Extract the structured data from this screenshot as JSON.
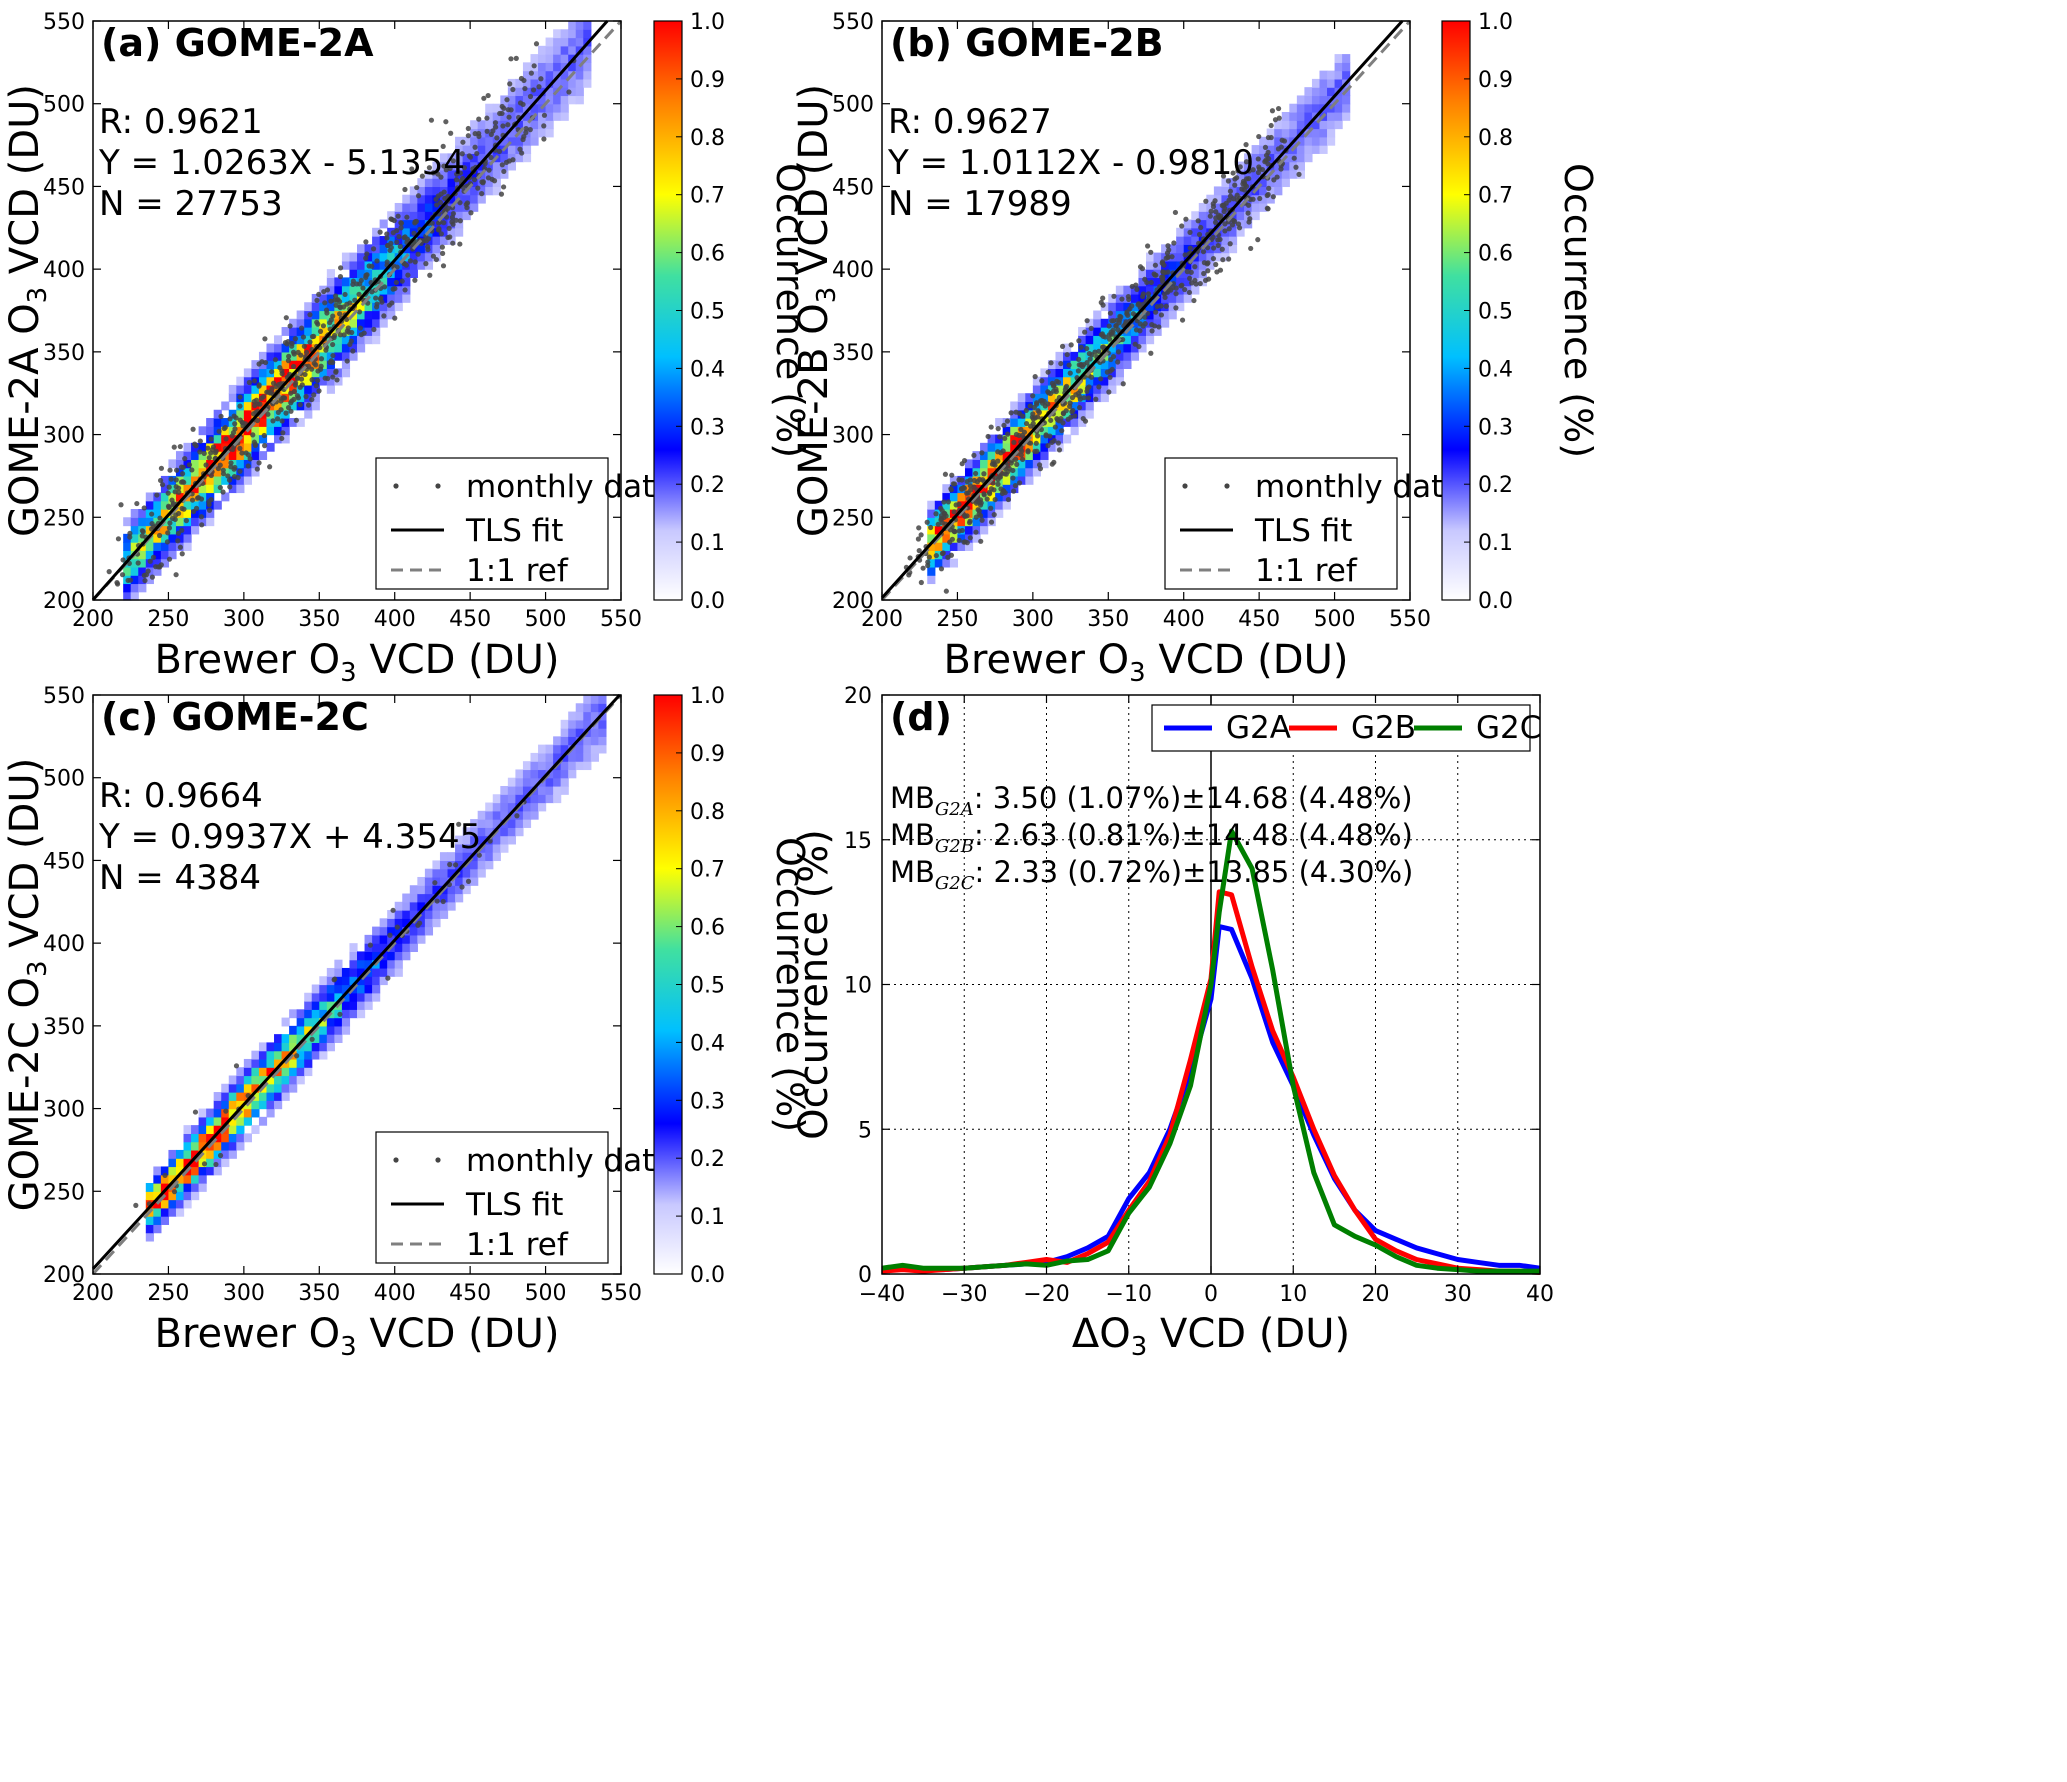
{
  "colors": {
    "scatter": "#444444",
    "tls": "#000000",
    "ref": "#7f7f7f",
    "G2A": "#0000ff",
    "G2B": "#ff0000",
    "G2C": "#007f00",
    "colormap": [
      "#ffffff",
      "#8080ff",
      "#0000ff",
      "#00c0ff",
      "#40e0a0",
      "#ffff00",
      "#ff8000",
      "#ff0000"
    ]
  },
  "panels": [
    {
      "title": "(a) GOME-2A",
      "ylabel_pre": "GOME-2A O",
      "ylabel_sub": "3",
      "ylabel_post": " VCD (DU)",
      "R": "R: 0.9621",
      "eq": "Y = 1.0263X - 5.1354",
      "N": "N = 27753",
      "slope": 1.0263,
      "intercept": -5.1354,
      "spread": 12,
      "lo": 220,
      "hi": 530,
      "peak": 300
    },
    {
      "title": "(b) GOME-2B",
      "ylabel_pre": "GOME-2B O",
      "ylabel_sub": "3",
      "ylabel_post": " VCD (DU)",
      "R": "R: 0.9627",
      "eq": "Y = 1.0112X - 0.9810",
      "N": "N = 17989",
      "slope": 1.0112,
      "intercept": -0.981,
      "spread": 10,
      "lo": 230,
      "hi": 510,
      "peak": 265
    },
    {
      "title": "(c) GOME-2C",
      "ylabel_pre": "GOME-2C O",
      "ylabel_sub": "3",
      "ylabel_post": " VCD (DU)",
      "R": "R: 0.9664",
      "eq": "Y = 0.9937X + 4.3545",
      "N": "N = 4384",
      "slope": 0.9937,
      "intercept": 4.3545,
      "spread": 8,
      "lo": 235,
      "hi": 540,
      "peak": 270
    }
  ],
  "scatter_axes": {
    "xlabel_pre": "Brewer O",
    "xlabel_sub": "3",
    "xlabel_post": " VCD (DU)",
    "xlim": [
      200,
      550
    ],
    "ylim": [
      200,
      550
    ],
    "ticks": [
      200,
      250,
      300,
      350,
      400,
      450,
      500,
      550
    ]
  },
  "legend": [
    "monthly data",
    "TLS fit",
    "1:1 ref"
  ],
  "colorbar": {
    "label": "Occurrence (%)",
    "range": [
      0.0,
      1.0
    ],
    "ticks": [
      "0.0",
      "0.1",
      "0.2",
      "0.3",
      "0.4",
      "0.5",
      "0.6",
      "0.7",
      "0.8",
      "0.9",
      "1.0"
    ]
  },
  "chart_data": [
    {
      "type": "heatmap",
      "title": "(a) GOME-2A",
      "xlabel": "Brewer O3 VCD (DU)",
      "ylabel": "GOME-2A O3 VCD (DU)",
      "xlim": [
        200,
        550
      ],
      "ylim": [
        200,
        550
      ],
      "R": 0.9621,
      "fit": {
        "slope": 1.0263,
        "intercept": -5.1354
      },
      "N": 27753,
      "series": [
        {
          "name": "monthly data"
        },
        {
          "name": "TLS fit"
        },
        {
          "name": "1:1 ref"
        }
      ],
      "colorbar_range": [
        0.0,
        1.0
      ]
    },
    {
      "type": "heatmap",
      "title": "(b) GOME-2B",
      "xlabel": "Brewer O3 VCD (DU)",
      "ylabel": "GOME-2B O3 VCD (DU)",
      "xlim": [
        200,
        550
      ],
      "ylim": [
        200,
        550
      ],
      "R": 0.9627,
      "fit": {
        "slope": 1.0112,
        "intercept": -0.981
      },
      "N": 17989,
      "series": [
        {
          "name": "monthly data"
        },
        {
          "name": "TLS fit"
        },
        {
          "name": "1:1 ref"
        }
      ],
      "colorbar_range": [
        0.0,
        1.0
      ]
    },
    {
      "type": "heatmap",
      "title": "(c) GOME-2C",
      "xlabel": "Brewer O3 VCD (DU)",
      "ylabel": "GOME-2C O3 VCD (DU)",
      "xlim": [
        200,
        550
      ],
      "ylim": [
        200,
        550
      ],
      "R": 0.9664,
      "fit": {
        "slope": 0.9937,
        "intercept": 4.3545
      },
      "N": 4384,
      "series": [
        {
          "name": "monthly data"
        },
        {
          "name": "TLS fit"
        },
        {
          "name": "1:1 ref"
        }
      ],
      "colorbar_range": [
        0.0,
        1.0
      ]
    },
    {
      "type": "line",
      "title": "(d)",
      "xlabel_pre": "ΔO",
      "xlabel_sub": "3",
      "xlabel_post": " VCD (DU)",
      "ylabel": "Occurrence (%)",
      "xlim": [
        -40,
        40
      ],
      "ylim": [
        0,
        20
      ],
      "xticks": [
        -40,
        -30,
        -20,
        -10,
        0,
        10,
        20,
        30,
        40
      ],
      "yticks": [
        0,
        5,
        10,
        15,
        20
      ],
      "grid": true,
      "legend_position": "top-right",
      "x": [
        -40,
        -37.5,
        -35,
        -32.5,
        -30,
        -27.5,
        -25,
        -22.5,
        -20,
        -17.5,
        -15,
        -12.5,
        -10,
        -7.5,
        -5,
        -2.5,
        0,
        1,
        2.5,
        5,
        7.5,
        10,
        12.5,
        15,
        17.5,
        20,
        22.5,
        25,
        27.5,
        30,
        32.5,
        35,
        37.5,
        40
      ],
      "series": [
        {
          "name": "G2A",
          "values": [
            0.1,
            0.2,
            0.15,
            0.15,
            0.2,
            0.25,
            0.3,
            0.35,
            0.4,
            0.6,
            0.9,
            1.3,
            2.6,
            3.5,
            5.0,
            7.0,
            9.5,
            12.0,
            11.9,
            10.2,
            8.0,
            6.5,
            4.8,
            3.3,
            2.2,
            1.5,
            1.2,
            0.9,
            0.7,
            0.5,
            0.4,
            0.3,
            0.3,
            0.2
          ]
        },
        {
          "name": "G2B",
          "values": [
            0.1,
            0.15,
            0.1,
            0.15,
            0.2,
            0.25,
            0.3,
            0.4,
            0.5,
            0.4,
            0.7,
            1.1,
            2.2,
            3.2,
            4.8,
            7.4,
            10.2,
            13.2,
            13.1,
            10.6,
            8.4,
            6.8,
            5.0,
            3.4,
            2.2,
            1.2,
            0.8,
            0.5,
            0.35,
            0.2,
            0.15,
            0.1,
            0.1,
            0.05
          ]
        },
        {
          "name": "G2C",
          "values": [
            0.2,
            0.3,
            0.2,
            0.2,
            0.2,
            0.25,
            0.3,
            0.35,
            0.3,
            0.45,
            0.5,
            0.8,
            2.1,
            3.0,
            4.5,
            6.5,
            10.0,
            12.5,
            15.3,
            14.0,
            10.5,
            6.5,
            3.5,
            1.7,
            1.3,
            1.0,
            0.6,
            0.3,
            0.2,
            0.15,
            0.1,
            0.1,
            0.1,
            0.1
          ]
        }
      ],
      "mb": [
        {
          "label": "MB",
          "sub": "G2A",
          "text": ": 3.50 (1.07%)±14.68 (4.48%)"
        },
        {
          "label": "MB",
          "sub": "G2B",
          "text": ": 2.63 (0.81%)±14.48 (4.48%)"
        },
        {
          "label": "MB",
          "sub": "G2C",
          "text": ": 2.33 (0.72%)±13.85 (4.30%)"
        }
      ]
    }
  ]
}
